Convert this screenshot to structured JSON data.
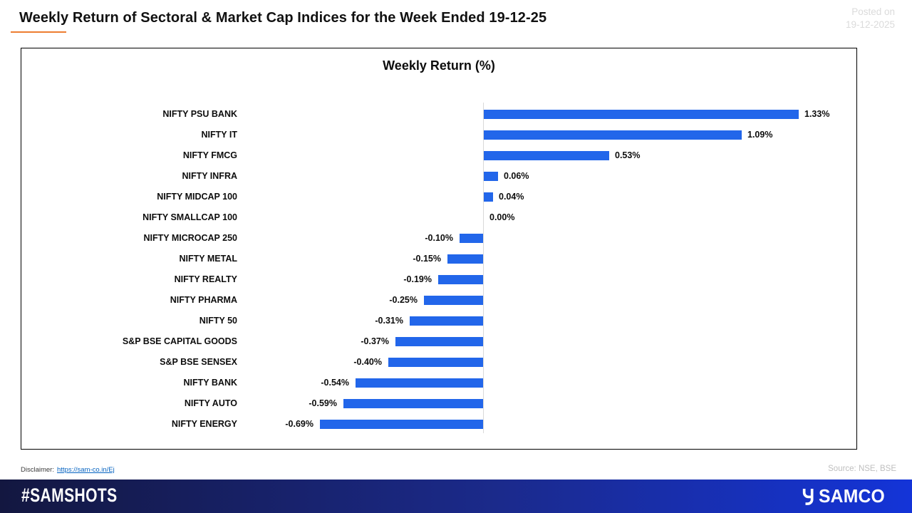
{
  "header": {
    "title": "Weekly Return of Sectoral & Market Cap Indices for the Week Ended 19-12-25",
    "posted_on_line1": "Posted on",
    "posted_on_line2": "19-12-2025"
  },
  "chart_data": {
    "type": "bar",
    "orientation": "horizontal",
    "title": "Weekly Return (%)",
    "categories": [
      "NIFTY PSU BANK",
      "NIFTY IT",
      "NIFTY FMCG",
      "NIFTY INFRA",
      "NIFTY MIDCAP 100",
      "NIFTY SMALLCAP 100",
      "NIFTY MICROCAP 250",
      "NIFTY METAL",
      "NIFTY REALTY",
      "NIFTY PHARMA",
      "NIFTY 50",
      "S&P BSE CAPITAL GOODS",
      "S&P BSE SENSEX",
      "NIFTY BANK",
      "NIFTY AUTO",
      "NIFTY ENERGY"
    ],
    "values": [
      1.33,
      1.09,
      0.53,
      0.06,
      0.04,
      0.0,
      -0.1,
      -0.15,
      -0.19,
      -0.25,
      -0.31,
      -0.37,
      -0.4,
      -0.54,
      -0.59,
      -0.69
    ],
    "value_labels": [
      "1.33%",
      "1.09%",
      "0.53%",
      "0.06%",
      "0.04%",
      "0.00%",
      "-0.10%",
      "-0.15%",
      "-0.19%",
      "-0.25%",
      "-0.31%",
      "-0.37%",
      "-0.40%",
      "-0.54%",
      "-0.59%",
      "-0.69%"
    ],
    "xlabel": "",
    "ylabel": "",
    "xlim": [
      -0.8,
      1.6
    ],
    "grid": false,
    "legend": false,
    "data_labels": true,
    "bar_color": "#2266EA",
    "axis_line_color": "#D9D9D9"
  },
  "meta_row": {
    "disclaimer_label": "Disclaimer:",
    "disclaimer_link": "https://sam-co.in/Ej",
    "source": "Source: NSE, BSE"
  },
  "footer": {
    "hashtag": "#SAMSHOTS",
    "brand": "SAMCO"
  },
  "colors": {
    "bar": "#2266EA",
    "title_underline": "#ED7D31",
    "posted_on_text": "#DBDBDB",
    "source_text": "#BFBFBF",
    "link": "#0563C1",
    "footer_gradient_left": "#131740",
    "footer_gradient_right": "#1434D8"
  }
}
